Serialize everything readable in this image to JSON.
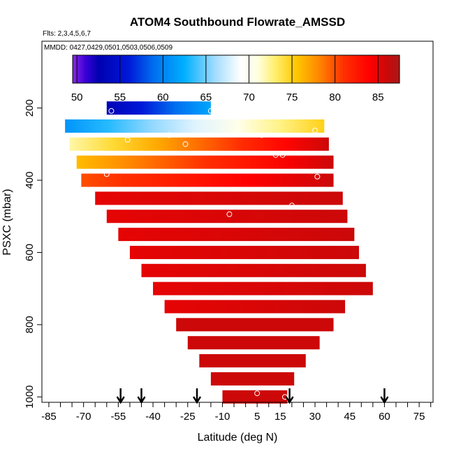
{
  "chart_data": {
    "type": "heatmap",
    "title": "ATOM4 Southbound Flowrate_AMSSD",
    "flights_label": "Flts: 2,3,4,5,6,7",
    "dates_label": "MMDD: 0427,0429,0501,0503,0506,0509",
    "xlabel": "Latitude (deg N)",
    "ylabel": "PSXC (mbar)",
    "xlim": [
      -88,
      81
    ],
    "ylim": [
      1015,
      15
    ],
    "x_ticks": [
      -85,
      -70,
      -55,
      -40,
      -25,
      -10,
      5,
      15,
      30,
      45,
      60,
      75
    ],
    "y_ticks": [
      200,
      400,
      600,
      800,
      1000
    ],
    "colorbar": {
      "range": [
        49.5,
        87.5
      ],
      "ticks": [
        50,
        55,
        60,
        65,
        70,
        75,
        80,
        85
      ],
      "colors": [
        {
          "v": 49.5,
          "c": "#8a2be2"
        },
        {
          "v": 51.0,
          "c": "#3a00d8"
        },
        {
          "v": 52.5,
          "c": "#0000b0"
        },
        {
          "v": 56.0,
          "c": "#0018d8"
        },
        {
          "v": 59.0,
          "c": "#0070f0"
        },
        {
          "v": 62.5,
          "c": "#00b0ff"
        },
        {
          "v": 66.0,
          "c": "#a0dcff"
        },
        {
          "v": 69.0,
          "c": "#ffffff"
        },
        {
          "v": 71.0,
          "c": "#ffffe0"
        },
        {
          "v": 73.0,
          "c": "#ffef70"
        },
        {
          "v": 75.5,
          "c": "#ffc800"
        },
        {
          "v": 78.0,
          "c": "#ff8a00"
        },
        {
          "v": 81.0,
          "c": "#ff3000"
        },
        {
          "v": 84.0,
          "c": "#ff0000"
        },
        {
          "v": 86.0,
          "c": "#cc0808"
        },
        {
          "v": 87.5,
          "c": "#a81818"
        }
      ]
    },
    "bands": [
      {
        "p": 200,
        "xmin": -60,
        "xmax": -15,
        "vmin": 53,
        "vmax": 62
      },
      {
        "p": 250,
        "xmin": -78,
        "xmax": 34,
        "vmin": 61,
        "vmax": 75
      },
      {
        "p": 300,
        "xmin": -76,
        "xmax": 36,
        "vmin": 72,
        "vmax": 86
      },
      {
        "p": 350,
        "xmin": -73,
        "xmax": 38,
        "vmin": 76,
        "vmax": 86
      },
      {
        "p": 400,
        "xmin": -71,
        "xmax": 38,
        "vmin": 80,
        "vmax": 86
      },
      {
        "p": 450,
        "xmin": -65,
        "xmax": 42,
        "vmin": 85,
        "vmax": 86
      },
      {
        "p": 500,
        "xmin": -60,
        "xmax": 44,
        "vmin": 85,
        "vmax": 86
      },
      {
        "p": 550,
        "xmin": -55,
        "xmax": 47,
        "vmin": 85,
        "vmax": 86
      },
      {
        "p": 600,
        "xmin": -50,
        "xmax": 49,
        "vmin": 85,
        "vmax": 86
      },
      {
        "p": 650,
        "xmin": -45,
        "xmax": 52,
        "vmin": 85,
        "vmax": 86
      },
      {
        "p": 700,
        "xmin": -40,
        "xmax": 55,
        "vmin": 85,
        "vmax": 86
      },
      {
        "p": 750,
        "xmin": -35,
        "xmax": 43,
        "vmin": 85,
        "vmax": 86
      },
      {
        "p": 800,
        "xmin": -30,
        "xmax": 38,
        "vmin": 86,
        "vmax": 86
      },
      {
        "p": 850,
        "xmin": -25,
        "xmax": 32,
        "vmin": 86,
        "vmax": 86
      },
      {
        "p": 900,
        "xmin": -20,
        "xmax": 26,
        "vmin": 86,
        "vmax": 86
      },
      {
        "p": 950,
        "xmin": -15,
        "xmax": 21,
        "vmin": 86,
        "vmax": 86
      },
      {
        "p": 1000,
        "xmin": -10,
        "xmax": 18,
        "vmin": 86,
        "vmax": 86
      }
    ],
    "circles": [
      {
        "x": -58,
        "p": 208
      },
      {
        "x": -15,
        "p": 208
      },
      {
        "x": 27,
        "p": 220
      },
      {
        "x": -80,
        "p": 248
      },
      {
        "x": 30,
        "p": 262
      },
      {
        "x": -33,
        "p": 275
      },
      {
        "x": 7,
        "p": 275
      },
      {
        "x": -51,
        "p": 288
      },
      {
        "x": -26,
        "p": 300
      },
      {
        "x": 13,
        "p": 330
      },
      {
        "x": 16,
        "p": 330
      },
      {
        "x": -60,
        "p": 383
      },
      {
        "x": 31,
        "p": 390
      },
      {
        "x": 20,
        "p": 470
      },
      {
        "x": -7,
        "p": 494
      },
      {
        "x": 55,
        "p": 665
      },
      {
        "x": 5,
        "p": 990
      },
      {
        "x": 17,
        "p": 1000
      }
    ],
    "arrows_x": [
      -54,
      -45,
      -21,
      19,
      60
    ]
  }
}
